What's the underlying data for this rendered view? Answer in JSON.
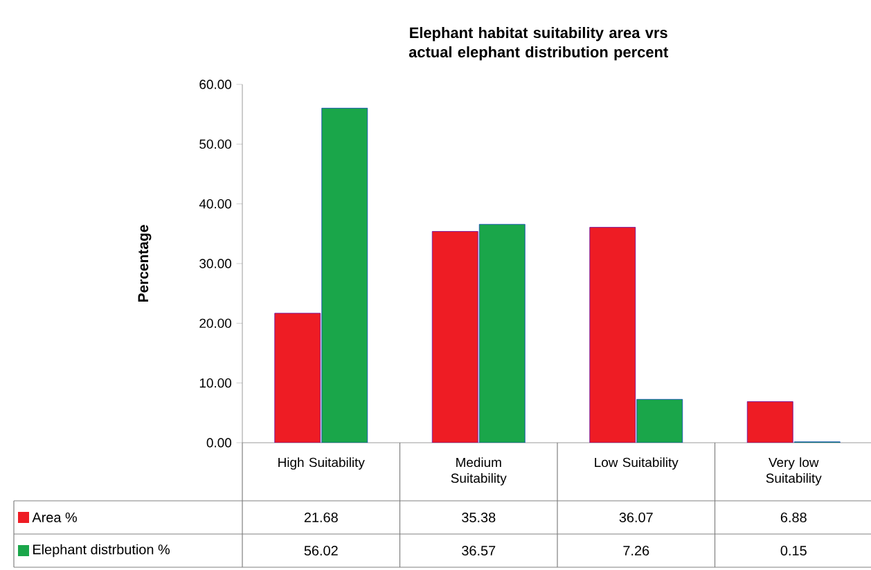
{
  "chart_data": {
    "type": "bar",
    "title": "Elephant habitat  suitability area vrs actual elephant distribution percent",
    "ylabel": "Percentage",
    "categories": [
      "High Suitability",
      "Medium Suitability",
      "Low Suitability",
      "Very low Suitability"
    ],
    "series": [
      {
        "name": "Area %",
        "color": "#ee1c24",
        "values": [
          21.68,
          35.38,
          36.07,
          6.88
        ]
      },
      {
        "name": "Elephant distrbution %",
        "color": "#1aa64a",
        "values": [
          56.02,
          36.57,
          7.26,
          0.15
        ]
      }
    ],
    "ylim": [
      0,
      60
    ],
    "yticks": [
      {
        "value": 0,
        "label": "0.00"
      },
      {
        "value": 10,
        "label": "10.00"
      },
      {
        "value": 20,
        "label": "20.00"
      },
      {
        "value": 30,
        "label": "30.00"
      },
      {
        "value": 40,
        "label": "40.00"
      },
      {
        "value": 50,
        "label": "50.00"
      },
      {
        "value": 60,
        "label": "60.00"
      }
    ],
    "data_labels": true,
    "legend": "bottom",
    "grid": false
  }
}
